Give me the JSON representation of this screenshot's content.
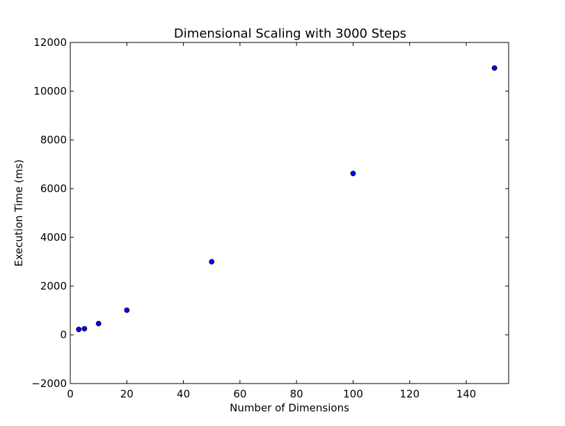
{
  "chart_data": {
    "type": "scatter",
    "title": "Dimensional Scaling with 3000 Steps",
    "xlabel": "Number of Dimensions",
    "ylabel": "Execution Time (ms)",
    "xlim": [
      0,
      155
    ],
    "ylim": [
      -2000,
      12000
    ],
    "xticks": [
      0,
      20,
      40,
      60,
      80,
      100,
      120,
      140
    ],
    "yticks": [
      -2000,
      0,
      2000,
      4000,
      6000,
      8000,
      10000,
      12000
    ],
    "xtick_labels": [
      "0",
      "20",
      "40",
      "60",
      "80",
      "100",
      "120",
      "140"
    ],
    "ytick_labels": [
      "−2000",
      "0",
      "2000",
      "4000",
      "6000",
      "8000",
      "10000",
      "12000"
    ],
    "grid": false,
    "marker_color": "#0000ff",
    "series": [
      {
        "x": [
          3,
          5,
          10,
          20,
          50,
          100,
          150
        ],
        "y": [
          220,
          250,
          460,
          1010,
          3000,
          6620,
          10950
        ]
      }
    ]
  }
}
